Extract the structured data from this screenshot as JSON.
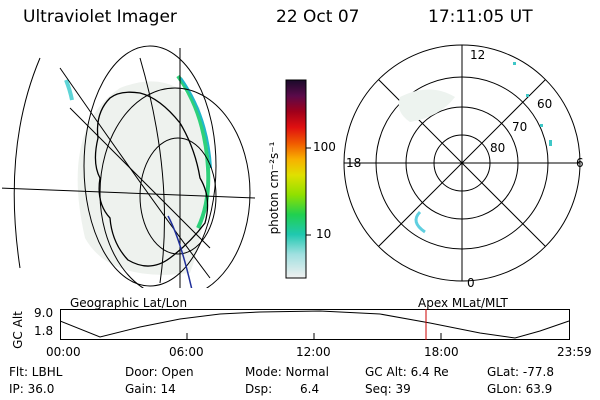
{
  "header": {
    "instrument": "Ultraviolet Imager",
    "date": "22 Oct 07",
    "time": "17:11:05 UT"
  },
  "colorbar": {
    "unit": "photon cm⁻²s⁻¹",
    "ticks": [
      "100",
      "10"
    ]
  },
  "polar_plot": {
    "mlt_labels": [
      "12",
      "18",
      "6",
      "0"
    ],
    "lat_labels": [
      "60",
      "70",
      "80"
    ]
  },
  "orbit_panel": {
    "left_label": "Geographic Lat/Lon",
    "right_label": "Apex MLat/MLT",
    "y_label": "GC Alt",
    "y_ticks": [
      "9.0",
      "1.8"
    ],
    "x_ticks": [
      "00:00",
      "06:00",
      "12:00",
      "18:00",
      "23:59"
    ]
  },
  "info": {
    "filter": "Flt: LBHL",
    "ip": "IP: 36.0",
    "door": "Door: Open",
    "gain": "Gain: 14",
    "mode": "Mode: Normal",
    "dsp_label": "Dsp:",
    "dsp_value": "6.4",
    "gc_alt": "GC Alt: 6.4 Re",
    "seq": "Seq: 39",
    "glat": "GLat: -77.8",
    "glon": "GLon: 63.9"
  },
  "colors": {
    "axis": "#000000",
    "marker": "#cc0000",
    "orbit_track": "#1f2f9a"
  }
}
